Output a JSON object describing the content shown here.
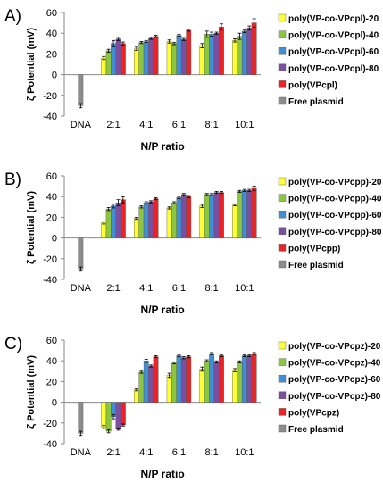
{
  "categories": [
    "DNA",
    "2:1",
    "4:1",
    "6:1",
    "8:1",
    "10:1"
  ],
  "colors": [
    "#ffff33",
    "#8cc63f",
    "#3f8fd6",
    "#7b4fa0",
    "#ee2222",
    "#8c8c8c"
  ],
  "free_plasmid": {
    "value": -30,
    "error": 2
  },
  "chart_data": [
    {
      "type": "bar",
      "panel_label": "A)",
      "xlabel": "N/P ratio",
      "ylabel": "ζ Potential (mV)",
      "ylim": [
        -40,
        60
      ],
      "yticks": [
        "60",
        "40",
        "20",
        "0",
        "-20",
        "-40"
      ],
      "categories": [
        "DNA",
        "2:1",
        "4:1",
        "6:1",
        "8:1",
        "10:1"
      ],
      "legend_position": "right",
      "series": [
        {
          "name": "poly(VP-co-VPcpl)-20",
          "values": [
            null,
            16,
            25,
            32,
            28,
            33
          ],
          "errors": [
            null,
            1.5,
            1.5,
            1.5,
            2,
            1.5
          ]
        },
        {
          "name": "poly(VP-co-VPcpl)-40",
          "values": [
            null,
            23,
            31,
            30,
            39,
            37
          ],
          "errors": [
            null,
            1.5,
            1,
            1,
            3,
            3
          ]
        },
        {
          "name": "poly(VP-co-VPcpl)-60",
          "values": [
            null,
            30,
            32,
            38,
            39,
            42
          ],
          "errors": [
            null,
            3,
            1,
            1,
            2,
            1.5
          ]
        },
        {
          "name": "poly(VP-co-VPcpl)-80",
          "values": [
            null,
            34,
            35,
            34,
            40,
            45
          ],
          "errors": [
            null,
            1,
            1,
            1,
            1,
            2
          ]
        },
        {
          "name": "poly(VPcpl)",
          "values": [
            null,
            30,
            37,
            43,
            46,
            50
          ],
          "errors": [
            null,
            1.5,
            1,
            1,
            3,
            4
          ]
        },
        {
          "name": "Free plasmid",
          "values": [
            -30,
            null,
            null,
            null,
            null,
            null
          ],
          "errors": [
            2,
            null,
            null,
            null,
            null,
            null
          ]
        }
      ]
    },
    {
      "type": "bar",
      "panel_label": "B)",
      "xlabel": "N/P ratio",
      "ylabel": "ζ Potential (mV)",
      "ylim": [
        -40,
        60
      ],
      "yticks": [
        "60",
        "40",
        "20",
        "0",
        "-20",
        "-40"
      ],
      "categories": [
        "DNA",
        "2:1",
        "4:1",
        "6:1",
        "8:1",
        "10:1"
      ],
      "legend_position": "right",
      "series": [
        {
          "name": "poly(VP-co-VPcpp)-20",
          "values": [
            null,
            15,
            19,
            29,
            31,
            32
          ],
          "errors": [
            null,
            1.5,
            1,
            1,
            1.5,
            1
          ]
        },
        {
          "name": "poly(VP-co-VPcpp)-40",
          "values": [
            null,
            28,
            30,
            34,
            42,
            45
          ],
          "errors": [
            null,
            1.5,
            1,
            1,
            1,
            1
          ]
        },
        {
          "name": "poly(VP-co-VPcpp)-60",
          "values": [
            null,
            31,
            34,
            39,
            42,
            46
          ],
          "errors": [
            null,
            2,
            1,
            1,
            1,
            1
          ]
        },
        {
          "name": "poly(VP-co-VPcpp)-80",
          "values": [
            null,
            34,
            35,
            42,
            44,
            46
          ],
          "errors": [
            null,
            3,
            1,
            1,
            1,
            1
          ]
        },
        {
          "name": "poly(VPcpp)",
          "values": [
            null,
            37,
            38,
            40,
            44,
            48
          ],
          "errors": [
            null,
            3,
            1,
            1,
            1,
            2
          ]
        },
        {
          "name": "Free plasmid",
          "values": [
            -30,
            null,
            null,
            null,
            null,
            null
          ],
          "errors": [
            2,
            null,
            null,
            null,
            null,
            null
          ]
        }
      ]
    },
    {
      "type": "bar",
      "panel_label": "C)",
      "xlabel": "N/P ratio",
      "ylabel": "ζ Potential (mV)",
      "ylim": [
        -40,
        60
      ],
      "yticks": [
        "60",
        "40",
        "20",
        "0",
        "-20",
        "-40"
      ],
      "categories": [
        "DNA",
        "2:1",
        "4:1",
        "6:1",
        "8:1",
        "10:1"
      ],
      "legend_position": "right",
      "series": [
        {
          "name": "poly(VP-co-VPcpz)-20",
          "values": [
            null,
            -24,
            12,
            26,
            32,
            31
          ],
          "errors": [
            null,
            1.5,
            1,
            2,
            2,
            1.5
          ]
        },
        {
          "name": "poly(VP-co-VPcpz)-40",
          "values": [
            null,
            -28,
            29,
            38,
            40,
            39
          ],
          "errors": [
            null,
            1.5,
            1,
            1,
            1,
            1
          ]
        },
        {
          "name": "poly(VP-co-VPcpz)-60",
          "values": [
            null,
            -14,
            40,
            45,
            47,
            45
          ],
          "errors": [
            null,
            2,
            1.5,
            1,
            1,
            1
          ]
        },
        {
          "name": "poly(VP-co-VPcpz)-80",
          "values": [
            null,
            -26,
            35,
            43,
            39,
            45
          ],
          "errors": [
            null,
            1,
            1,
            1,
            1,
            1
          ]
        },
        {
          "name": "poly(VPcpz)",
          "values": [
            null,
            -22,
            44,
            44,
            45,
            47
          ],
          "errors": [
            null,
            1,
            1,
            1,
            1,
            1
          ]
        },
        {
          "name": "Free plasmid",
          "values": [
            -30,
            null,
            null,
            null,
            null,
            null
          ],
          "errors": [
            2,
            null,
            null,
            null,
            null,
            null
          ]
        }
      ]
    }
  ]
}
